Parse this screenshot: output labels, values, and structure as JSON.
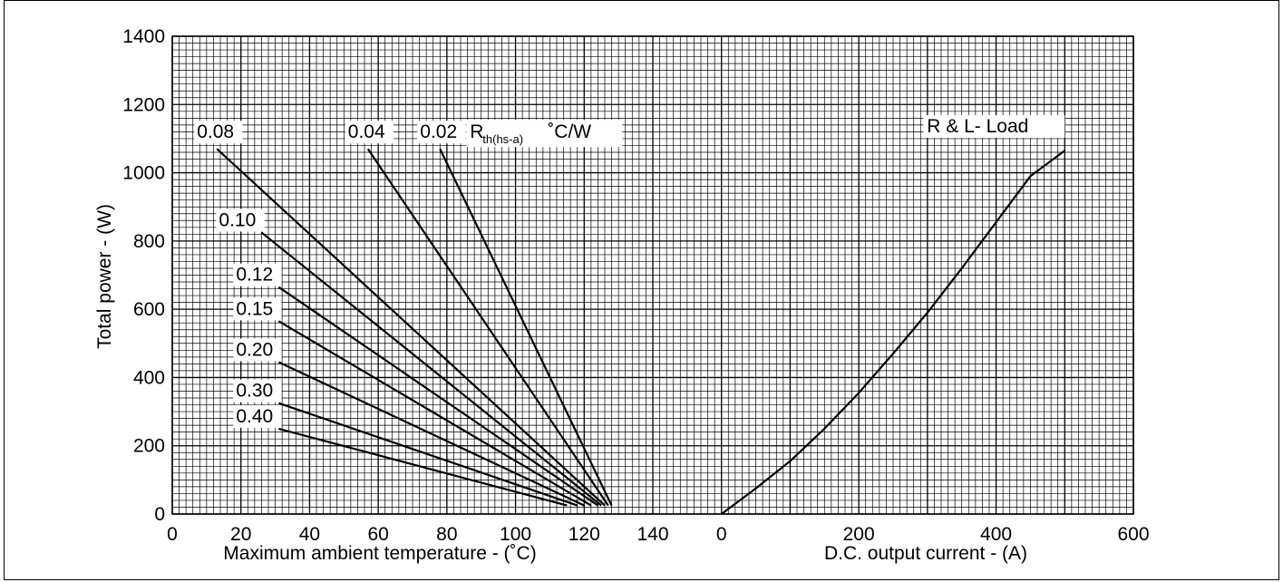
{
  "chart_data": {
    "type": "line",
    "ylabel": "Total power - (W)",
    "ylim": [
      0,
      1400
    ],
    "yticks": [
      "0",
      "200",
      "400",
      "600",
      "800",
      "1000",
      "1200",
      "1400"
    ],
    "grid": true,
    "left_panel": {
      "xlabel": "Maximum ambient temperature - (˚C)",
      "xlim": [
        0,
        160
      ],
      "xticks": [
        "0",
        "20",
        "40",
        "60",
        "80",
        "100",
        "120",
        "140"
      ],
      "series_unit_label": {
        "prefix": "R",
        "subscript": "th(hs-a)",
        "suffix": "˚C/W"
      },
      "series": [
        {
          "name": "0.02",
          "points": [
            [
              78,
              1070
            ],
            [
              128,
              25
            ]
          ]
        },
        {
          "name": "0.04",
          "points": [
            [
              57,
              1070
            ],
            [
              127,
              25
            ]
          ]
        },
        {
          "name": "0.08",
          "points": [
            [
              13,
              1070
            ],
            [
              126,
              25
            ]
          ]
        },
        {
          "name": "0.10",
          "points": [
            [
              26,
              825
            ],
            [
              125,
              25
            ]
          ]
        },
        {
          "name": "0.12",
          "points": [
            [
              31,
              665
            ],
            [
              124,
              25
            ]
          ]
        },
        {
          "name": "0.15",
          "points": [
            [
              31,
              565
            ],
            [
              122,
              25
            ]
          ]
        },
        {
          "name": "0.20",
          "points": [
            [
              31,
              445
            ],
            [
              120,
              25
            ]
          ]
        },
        {
          "name": "0.30",
          "points": [
            [
              31,
              325
            ],
            [
              118,
              25
            ]
          ]
        },
        {
          "name": "0.40",
          "points": [
            [
              31,
              250
            ],
            [
              115,
              25
            ]
          ]
        }
      ]
    },
    "right_panel": {
      "xlabel": "D.C. output current - (A)",
      "xlim": [
        0,
        600
      ],
      "xticks": [
        "0",
        "200",
        "400",
        "600"
      ],
      "series": [
        {
          "name": "R & L- Load",
          "points": [
            [
              0,
              0
            ],
            [
              50,
              75
            ],
            [
              100,
              155
            ],
            [
              150,
              250
            ],
            [
              200,
              355
            ],
            [
              250,
              470
            ],
            [
              300,
              590
            ],
            [
              350,
              720
            ],
            [
              400,
              855
            ],
            [
              450,
              990
            ],
            [
              500,
              1065
            ]
          ]
        }
      ]
    }
  }
}
